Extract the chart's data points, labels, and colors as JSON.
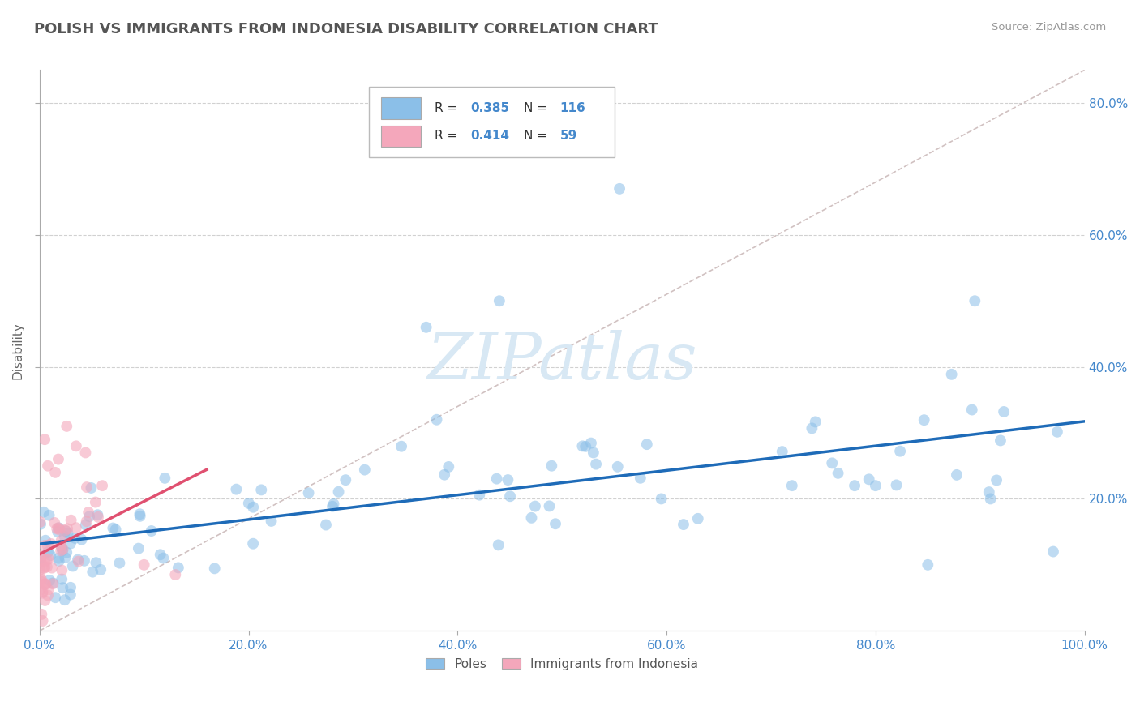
{
  "title": "POLISH VS IMMIGRANTS FROM INDONESIA DISABILITY CORRELATION CHART",
  "source": "Source: ZipAtlas.com",
  "ylabel": "Disability",
  "xlim": [
    0.0,
    1.0
  ],
  "ylim": [
    0.0,
    0.85
  ],
  "xticks": [
    0.0,
    0.2,
    0.4,
    0.6,
    0.8,
    1.0
  ],
  "xtick_labels": [
    "0.0%",
    "20.0%",
    "40.0%",
    "60.0%",
    "80.0%",
    "100.0%"
  ],
  "ytick_vals": [
    0.2,
    0.4,
    0.6,
    0.8
  ],
  "ytick_labels_right": [
    "20.0%",
    "40.0%",
    "60.0%",
    "80.0%"
  ],
  "blue_R": 0.385,
  "blue_N": 116,
  "pink_R": 0.414,
  "pink_N": 59,
  "blue_color": "#8BBFE8",
  "pink_color": "#F4A7BB",
  "blue_line_color": "#1E6BB8",
  "pink_line_color": "#E05070",
  "diag_color": "#CCBBBB",
  "grid_color": "#CCCCCC",
  "background_color": "#ffffff",
  "watermark_color": "#D8E8F4",
  "title_color": "#555555",
  "source_color": "#999999",
  "tick_color": "#4488CC",
  "legend_text_color": "#333333"
}
